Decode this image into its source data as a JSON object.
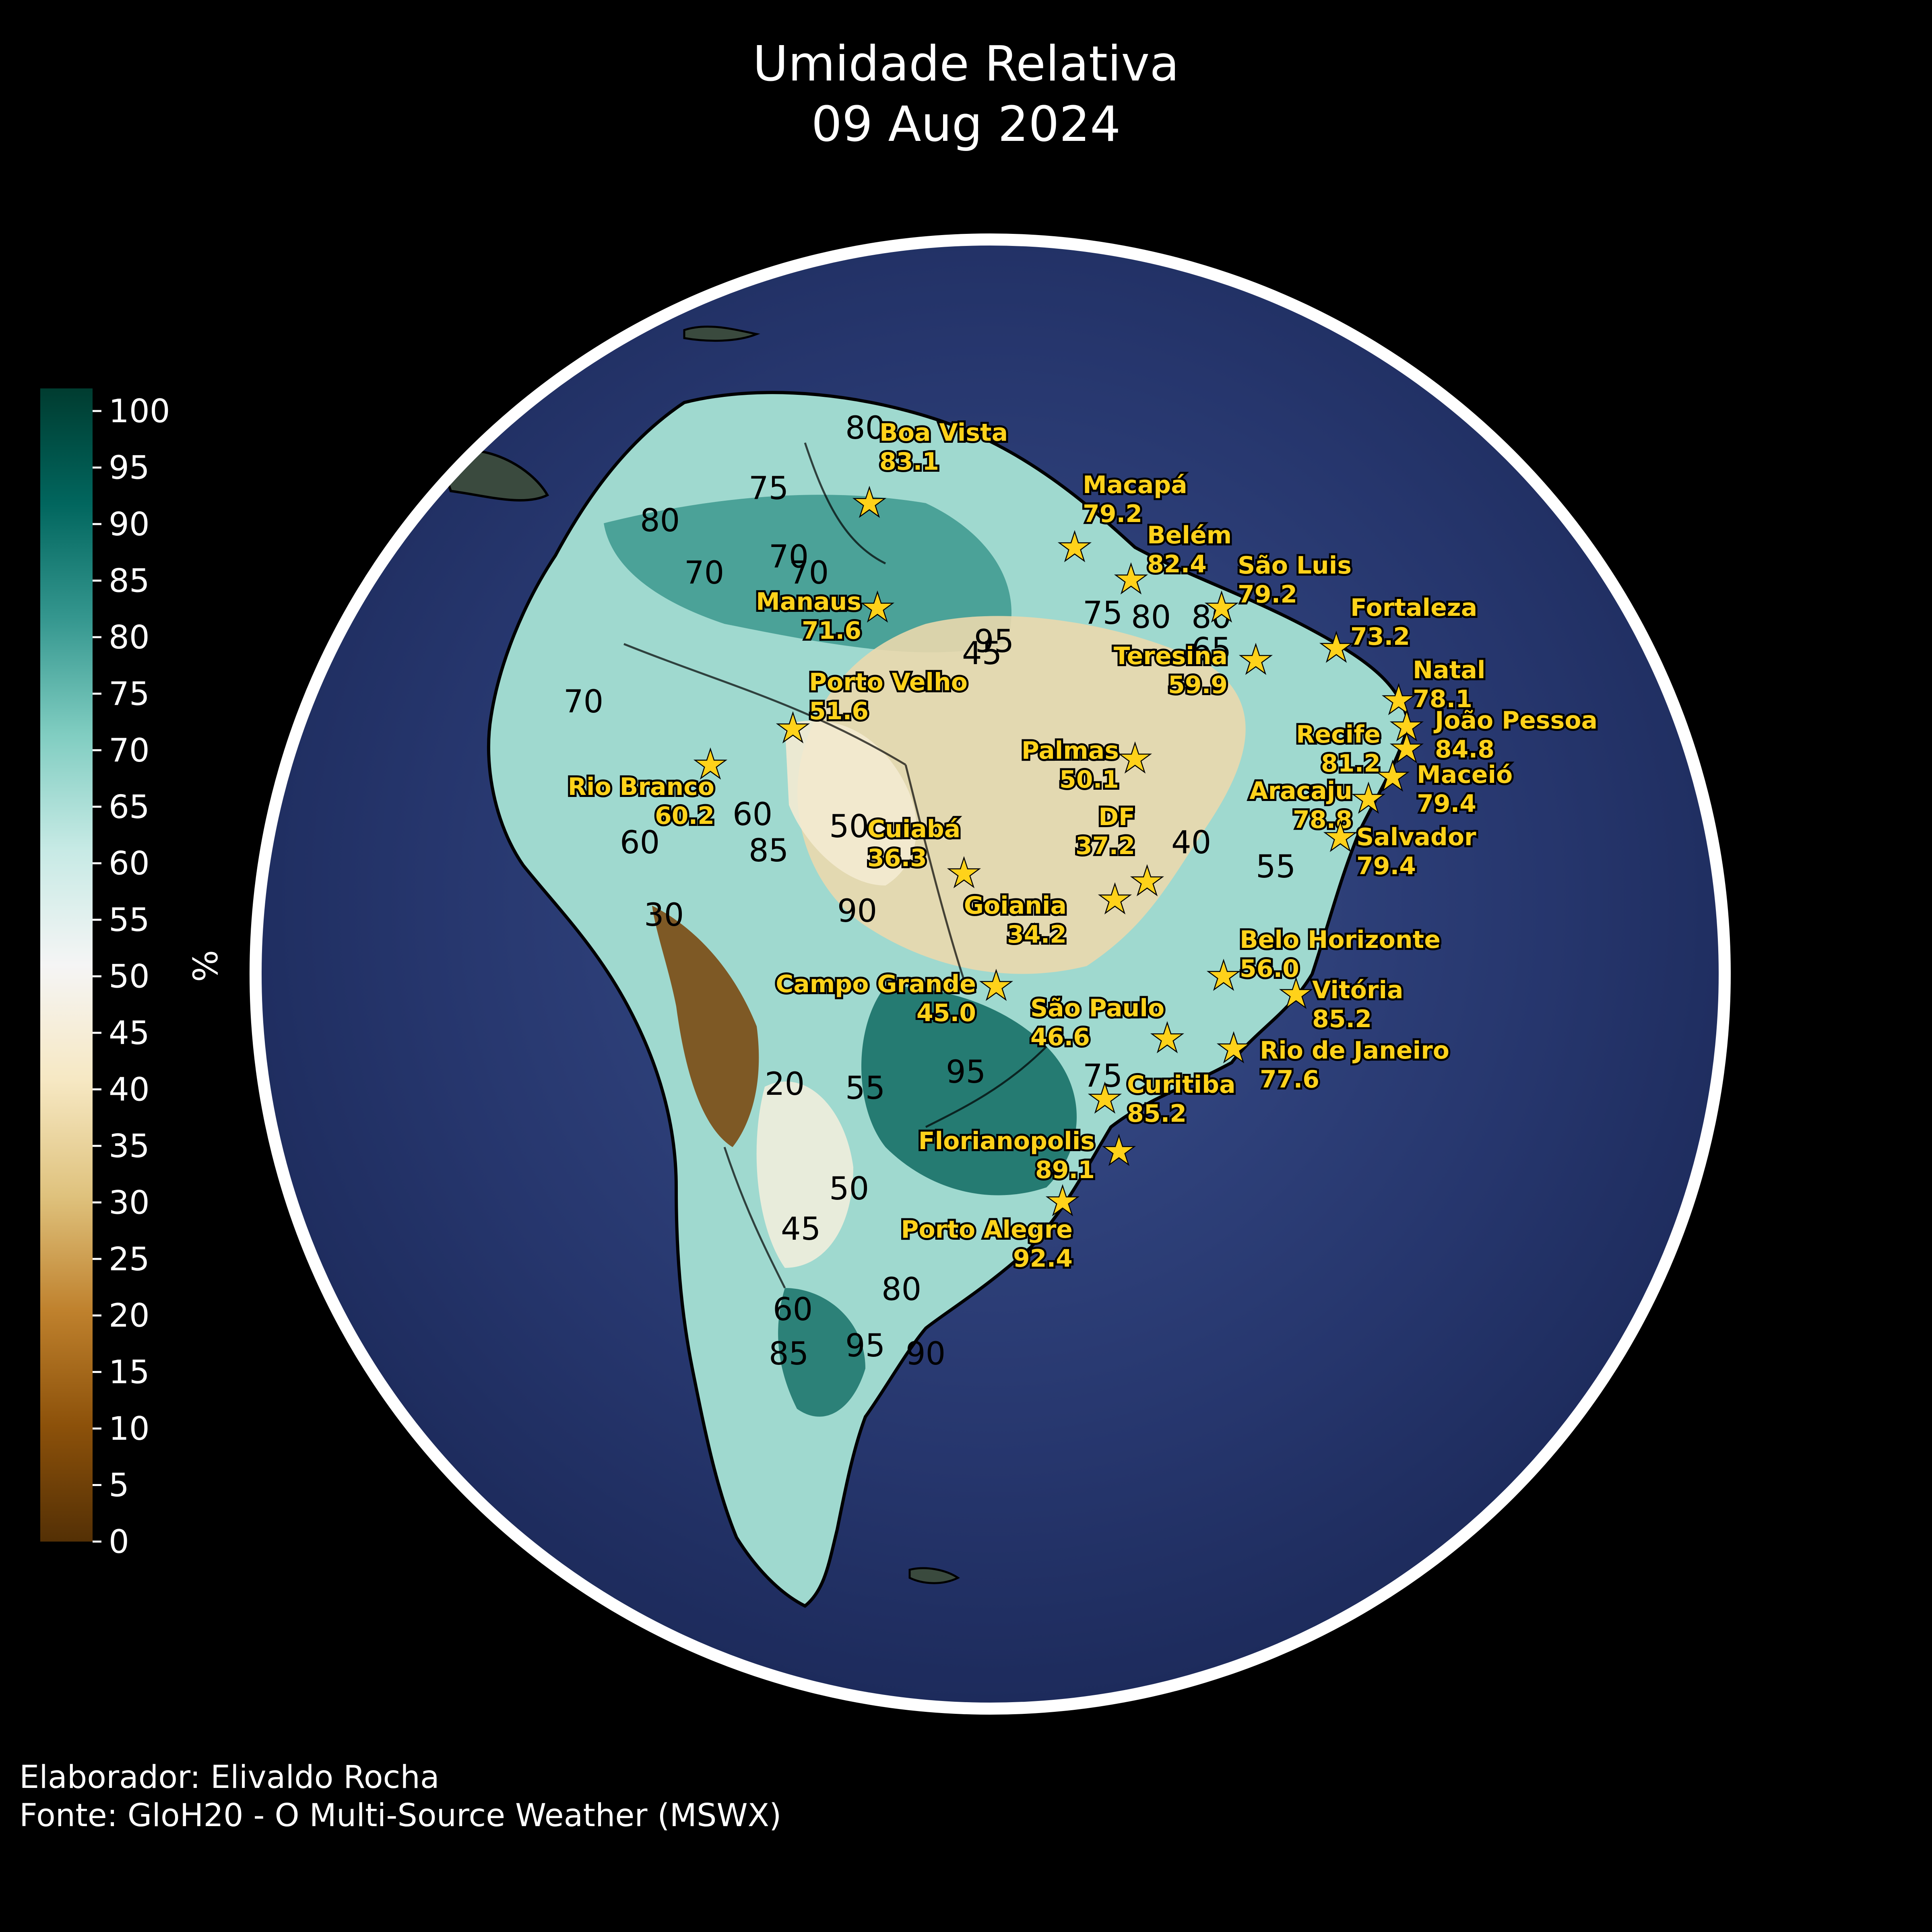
{
  "title": {
    "line1": "Umidade Relativa",
    "line2": "09 Aug 2024"
  },
  "colorbar": {
    "label": "%",
    "ticks": [
      "0",
      "5",
      "10",
      "15",
      "20",
      "25",
      "30",
      "35",
      "40",
      "45",
      "50",
      "55",
      "60",
      "65",
      "70",
      "75",
      "80",
      "85",
      "90",
      "95",
      "100"
    ],
    "min": 0,
    "max": 102,
    "colors": [
      "#543005",
      "#8c510a",
      "#bf812d",
      "#dfc27d",
      "#f6e8c3",
      "#f5f5f5",
      "#c7eae5",
      "#80cdc1",
      "#35978f",
      "#01665e",
      "#003c30"
    ]
  },
  "cities": [
    {
      "name": "Boa Vista",
      "value": "83.1"
    },
    {
      "name": "Macapá",
      "value": "79.2"
    },
    {
      "name": "Belém",
      "value": "82.4"
    },
    {
      "name": "São Luis",
      "value": "79.2"
    },
    {
      "name": "Fortaleza",
      "value": "73.2"
    },
    {
      "name": "Manaus",
      "value": "71.6"
    },
    {
      "name": "Teresina",
      "value": "59.9"
    },
    {
      "name": "Natal",
      "value": "78.1"
    },
    {
      "name": "João Pessoa",
      "value": "84.8"
    },
    {
      "name": "Recife",
      "value": "81.2"
    },
    {
      "name": "Maceió",
      "value": "79.4"
    },
    {
      "name": "Porto Velho",
      "value": "51.6"
    },
    {
      "name": "Palmas",
      "value": "50.1"
    },
    {
      "name": "Rio Branco",
      "value": "60.2"
    },
    {
      "name": "Aracaju",
      "value": "78.8"
    },
    {
      "name": "DF",
      "value": "37.2"
    },
    {
      "name": "Cuiabá",
      "value": "36.3"
    },
    {
      "name": "Salvador",
      "value": "79.4"
    },
    {
      "name": "Goiania",
      "value": "34.2"
    },
    {
      "name": "Belo Horizonte",
      "value": "56.0"
    },
    {
      "name": "Campo Grande",
      "value": "45.0"
    },
    {
      "name": "Vitória",
      "value": "85.2"
    },
    {
      "name": "São Paulo",
      "value": "46.6"
    },
    {
      "name": "Rio de Janeiro",
      "value": "77.6"
    },
    {
      "name": "Curitiba",
      "value": "85.2"
    },
    {
      "name": "Florianopolis",
      "value": "89.1"
    },
    {
      "name": "Porto Alegre",
      "value": "92.4"
    }
  ],
  "contour_labels": [
    {
      "text": "80"
    },
    {
      "text": "75"
    },
    {
      "text": "70"
    },
    {
      "text": "80"
    },
    {
      "text": "70"
    },
    {
      "text": "45"
    },
    {
      "text": "75"
    },
    {
      "text": "80"
    },
    {
      "text": "80"
    },
    {
      "text": "65"
    },
    {
      "text": "70"
    },
    {
      "text": "70"
    },
    {
      "text": "60"
    },
    {
      "text": "50"
    },
    {
      "text": "60"
    },
    {
      "text": "85"
    },
    {
      "text": "95"
    },
    {
      "text": "90"
    },
    {
      "text": "40"
    },
    {
      "text": "55"
    },
    {
      "text": "55"
    },
    {
      "text": "95"
    },
    {
      "text": "50"
    },
    {
      "text": "45"
    },
    {
      "text": "80"
    },
    {
      "text": "85"
    },
    {
      "text": "95"
    },
    {
      "text": "90"
    },
    {
      "text": "60"
    },
    {
      "text": "20"
    },
    {
      "text": "30"
    },
    {
      "text": "75"
    }
  ],
  "footer": {
    "line1": "Elaborador: Elivaldo Rocha",
    "line2": "Fonte: GloH20 - O Multi-Source Weather (MSWX)"
  },
  "colors": {
    "ocean": "#25336a",
    "ocean_light": "#3d5290",
    "globe_edge": "#ffffff",
    "city_text": "#ffd21a",
    "star": "#ffd21a"
  }
}
